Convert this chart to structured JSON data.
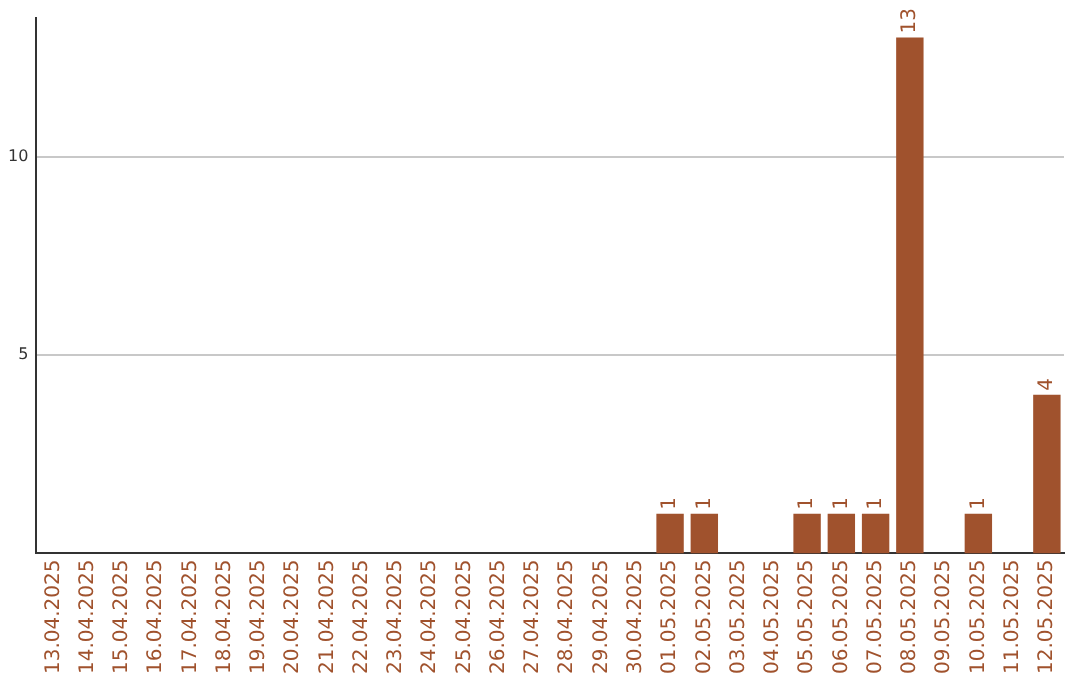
{
  "chart_data": {
    "type": "bar",
    "categories": [
      "13.04.2025",
      "14.04.2025",
      "15.04.2025",
      "16.04.2025",
      "17.04.2025",
      "18.04.2025",
      "19.04.2025",
      "20.04.2025",
      "21.04.2025",
      "22.04.2025",
      "23.04.2025",
      "24.04.2025",
      "25.04.2025",
      "26.04.2025",
      "27.04.2025",
      "28.04.2025",
      "29.04.2025",
      "30.04.2025",
      "01.05.2025",
      "02.05.2025",
      "03.05.2025",
      "04.05.2025",
      "05.05.2025",
      "06.05.2025",
      "07.05.2025",
      "08.05.2025",
      "09.05.2025",
      "10.05.2025",
      "11.05.2025",
      "12.05.2025"
    ],
    "values": [
      0,
      0,
      0,
      0,
      0,
      0,
      0,
      0,
      0,
      0,
      0,
      0,
      0,
      0,
      0,
      0,
      0,
      0,
      1,
      1,
      0,
      0,
      1,
      1,
      1,
      13,
      0,
      1,
      0,
      4
    ],
    "value_labels": [
      null,
      null,
      null,
      null,
      null,
      null,
      null,
      null,
      null,
      null,
      null,
      null,
      null,
      null,
      null,
      null,
      null,
      null,
      "1",
      "1",
      null,
      null,
      "1",
      "1",
      "1",
      "13",
      null,
      "1",
      null,
      "4"
    ],
    "color": "#a0522d",
    "ylim": [
      0,
      13.5
    ],
    "yticks": [
      5,
      10
    ],
    "grid": "y",
    "legend": false
  }
}
